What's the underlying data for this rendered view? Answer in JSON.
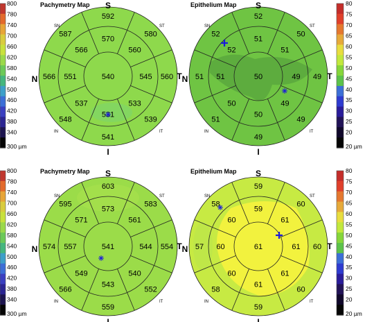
{
  "scale_pachymetry": {
    "ticks": [
      "800",
      "780",
      "740",
      "700",
      "660",
      "620",
      "580",
      "540",
      "500",
      "460",
      "420",
      "380",
      "340"
    ],
    "bottom_label": "300 µm",
    "colors": [
      "#c0372e",
      "#e36a2c",
      "#e7a538",
      "#d9cc3e",
      "#c8e13c",
      "#9bd94a",
      "#6cc958",
      "#45b67e",
      "#3d9fc9",
      "#3c6ed6",
      "#3a3fc0",
      "#2b2592",
      "#1d154f",
      "#050505"
    ]
  },
  "scale_epithelium": {
    "ticks": [
      "80",
      "75",
      "70",
      "65",
      "60",
      "55",
      "50",
      "45",
      "40",
      "35",
      "30",
      "25",
      "20"
    ],
    "bottom_label": "20 µm",
    "colors": [
      "#c42d2a",
      "#e0402b",
      "#e5782f",
      "#e7aa3a",
      "#e8dd3f",
      "#c2e83d",
      "#86d63a",
      "#5cc24a",
      "#3c6fd7",
      "#2e3bd0",
      "#2a1c9a",
      "#221357",
      "#10082a",
      "#050505"
    ]
  },
  "orientation": {
    "superior": "S",
    "inferior": "I",
    "nasal": "N",
    "temporal": "T"
  },
  "zones": {
    "sn": "SN",
    "st": "ST",
    "in": "IN",
    "it": "IT"
  },
  "maps": [
    {
      "title": "Pachymetry Map",
      "base_color": "#8ed94c",
      "center": "540",
      "inner": {
        "s": "570",
        "st": "560",
        "t": "545",
        "it": "533",
        "i": "531",
        "in": "537",
        "n": "551",
        "sn": "566"
      },
      "outer": {
        "s": "592",
        "st": "580",
        "t": "560",
        "it": "539",
        "i": "541",
        "in": "548",
        "n": "566",
        "sn": "587"
      },
      "markers": [
        {
          "type": "asterisk"
        }
      ]
    },
    {
      "title": "Epithelium Map",
      "base_color": "#6fc443",
      "center": "50",
      "inner": {
        "s": "51",
        "st": "51",
        "t": "49",
        "it": "49",
        "i": "50",
        "in": "50",
        "n": "51",
        "sn": "52"
      },
      "outer": {
        "s": "52",
        "st": "50",
        "t": "49",
        "it": "49",
        "i": "49",
        "in": "51",
        "n": "51",
        "sn": "52"
      },
      "markers": [
        {
          "type": "cross"
        },
        {
          "type": "asterisk"
        }
      ]
    },
    {
      "title": "Pachymetry Map",
      "base_color": "#9bdc49",
      "center": "541",
      "inner": {
        "s": "573",
        "st": "561",
        "t": "544",
        "it": "540",
        "i": "543",
        "in": "549",
        "n": "557",
        "sn": "571"
      },
      "outer": {
        "s": "603",
        "st": "583",
        "t": "554",
        "it": "552",
        "i": "559",
        "in": "566",
        "n": "574",
        "sn": "595"
      },
      "markers": [
        {
          "type": "asterisk"
        }
      ]
    },
    {
      "title": "Epithelium Map",
      "base_color": "#c7ea43",
      "center": "61",
      "inner": {
        "s": "59",
        "st": "61",
        "t": "61",
        "it": "61",
        "i": "61",
        "in": "60",
        "n": "60",
        "sn": "60"
      },
      "outer": {
        "s": "59",
        "st": "60",
        "t": "60",
        "it": "60",
        "i": "59",
        "in": "58",
        "n": "57",
        "sn": "58"
      },
      "markers": [
        {
          "type": "asterisk"
        },
        {
          "type": "cross"
        }
      ]
    }
  ]
}
